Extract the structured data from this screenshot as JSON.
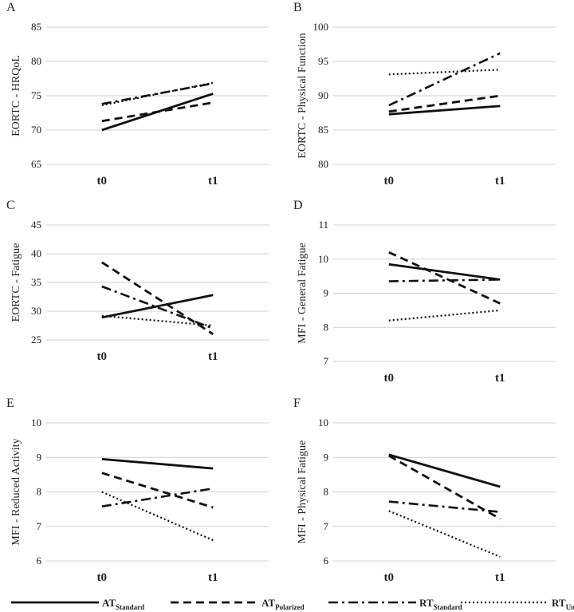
{
  "chart_data": [
    {
      "type": "line",
      "panel_label": "A",
      "ylabel": "EORTC - HRQoL",
      "categories": [
        "t0",
        "t1"
      ],
      "ylim": [
        65,
        85
      ],
      "yticks": [
        65,
        70,
        75,
        80,
        85
      ],
      "series": [
        {
          "name": "AT Standard",
          "style": "solid",
          "values": [
            70.0,
            75.3
          ]
        },
        {
          "name": "AT Polarized",
          "style": "dashed",
          "values": [
            71.3,
            74.0
          ]
        },
        {
          "name": "RT Standard",
          "style": "dashdot",
          "values": [
            73.8,
            76.8
          ]
        },
        {
          "name": "RT Undulating",
          "style": "dotted",
          "values": [
            73.6,
            76.9
          ]
        }
      ]
    },
    {
      "type": "line",
      "panel_label": "B",
      "ylabel": "EORTC - Physical Function",
      "categories": [
        "t0",
        "t1"
      ],
      "ylim": [
        80,
        100
      ],
      "yticks": [
        80,
        85,
        90,
        95,
        100
      ],
      "series": [
        {
          "name": "AT Standard",
          "style": "solid",
          "values": [
            87.3,
            88.5
          ]
        },
        {
          "name": "AT Polarized",
          "style": "dashed",
          "values": [
            87.7,
            90.0
          ]
        },
        {
          "name": "RT Standard",
          "style": "dashdot",
          "values": [
            88.6,
            96.2
          ]
        },
        {
          "name": "RT Undulating",
          "style": "dotted",
          "values": [
            93.1,
            93.8
          ]
        }
      ]
    },
    {
      "type": "line",
      "panel_label": "C",
      "ylabel": "EORTC - Fatigue",
      "categories": [
        "t0",
        "t1"
      ],
      "ylim": [
        25,
        45
      ],
      "yticks": [
        25,
        30,
        35,
        40,
        45
      ],
      "series": [
        {
          "name": "AT Standard",
          "style": "solid",
          "values": [
            28.9,
            32.8
          ]
        },
        {
          "name": "AT Polarized",
          "style": "dashed",
          "values": [
            38.5,
            26.0
          ]
        },
        {
          "name": "RT Standard",
          "style": "dashdot",
          "values": [
            34.3,
            27.0
          ]
        },
        {
          "name": "RT Undulating",
          "style": "dotted",
          "values": [
            29.2,
            27.5
          ]
        }
      ]
    },
    {
      "type": "line",
      "panel_label": "D",
      "ylabel": "MFI - General Fatigue",
      "categories": [
        "t0",
        "t1"
      ],
      "ylim": [
        7,
        11
      ],
      "yticks": [
        7,
        8,
        9,
        10,
        11
      ],
      "series": [
        {
          "name": "AT Standard",
          "style": "solid",
          "values": [
            9.85,
            9.4
          ]
        },
        {
          "name": "AT Polarized",
          "style": "dashed",
          "values": [
            10.2,
            8.7
          ]
        },
        {
          "name": "RT Standard",
          "style": "dashdot",
          "values": [
            9.35,
            9.4
          ]
        },
        {
          "name": "RT Undulating",
          "style": "dotted",
          "values": [
            8.2,
            8.5
          ]
        }
      ]
    },
    {
      "type": "line",
      "panel_label": "E",
      "ylabel": "MFI - Reduced Activity",
      "categories": [
        "t0",
        "t1"
      ],
      "ylim": [
        6,
        10
      ],
      "yticks": [
        6,
        7,
        8,
        9,
        10
      ],
      "series": [
        {
          "name": "AT Standard",
          "style": "solid",
          "values": [
            8.95,
            8.68
          ]
        },
        {
          "name": "AT Polarized",
          "style": "dashed",
          "values": [
            8.55,
            7.55
          ]
        },
        {
          "name": "RT Standard",
          "style": "dashdot",
          "values": [
            7.58,
            8.1
          ]
        },
        {
          "name": "RT Undulating",
          "style": "dotted",
          "values": [
            8.0,
            6.6
          ]
        }
      ]
    },
    {
      "type": "line",
      "panel_label": "F",
      "ylabel": "MFI - Physical Fatigue",
      "categories": [
        "t0",
        "t1"
      ],
      "ylim": [
        6,
        10
      ],
      "yticks": [
        6,
        7,
        8,
        9,
        10
      ],
      "series": [
        {
          "name": "AT Standard",
          "style": "solid",
          "values": [
            9.08,
            8.15
          ]
        },
        {
          "name": "AT Polarized",
          "style": "dashed",
          "values": [
            9.05,
            7.22
          ]
        },
        {
          "name": "RT Standard",
          "style": "dashdot",
          "values": [
            7.72,
            7.42
          ]
        },
        {
          "name": "RT Undulating",
          "style": "dotted",
          "values": [
            7.45,
            6.12
          ]
        }
      ]
    }
  ],
  "legend": [
    {
      "main": "AT",
      "sub": "Standard",
      "style": "solid"
    },
    {
      "main": "AT",
      "sub": "Polarized",
      "style": "dashed"
    },
    {
      "main": "RT",
      "sub": "Standard",
      "style": "dashdot"
    },
    {
      "main": "RT",
      "sub": "Undulating",
      "style": "dotted"
    }
  ]
}
